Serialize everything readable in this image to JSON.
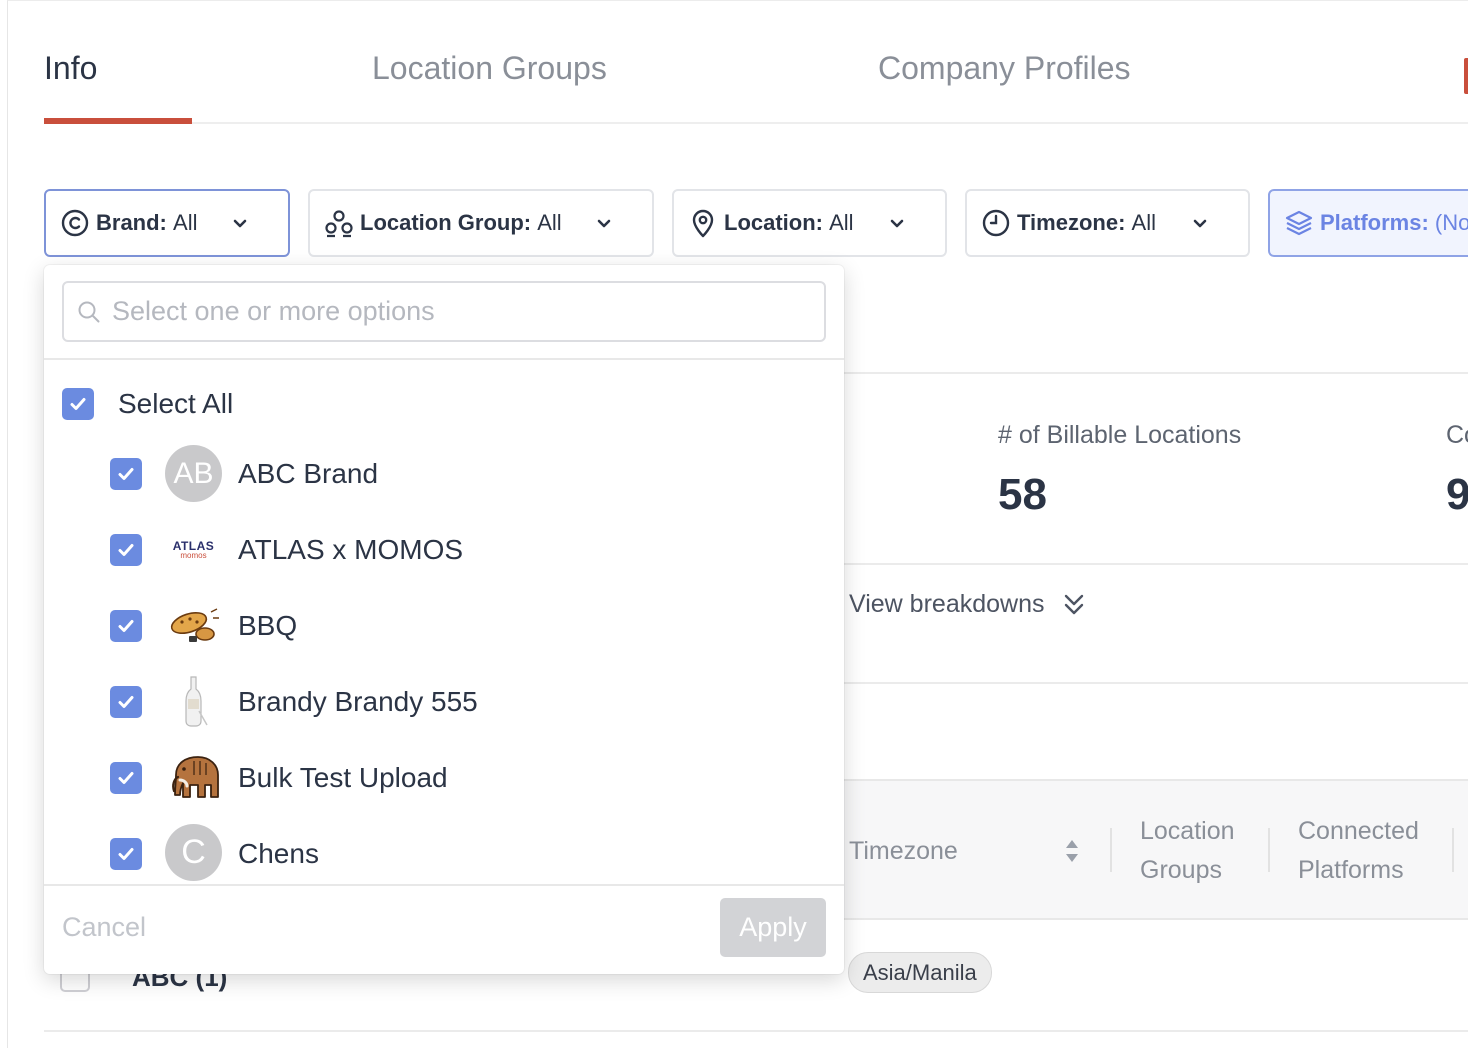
{
  "tabs": [
    {
      "label": "Info",
      "active": true
    },
    {
      "label": "Location Groups",
      "active": false
    },
    {
      "label": "Company Profiles",
      "active": false
    }
  ],
  "accent_color": "#c94f3c",
  "filters": {
    "brand": {
      "label": "Brand:",
      "value": "All",
      "icon": "copyright-icon"
    },
    "location_group": {
      "label": "Location Group:",
      "value": "All",
      "icon": "group-icon"
    },
    "location": {
      "label": "Location:",
      "value": "All",
      "icon": "map-pin-icon"
    },
    "timezone": {
      "label": "Timezone:",
      "value": "All",
      "icon": "clock-icon"
    },
    "platforms": {
      "label": "Platforms:",
      "value": "(No",
      "icon": "layers-icon"
    }
  },
  "stats": {
    "billable_label": "# of Billable Locations",
    "billable_value": "58",
    "next_label": "Co",
    "next_value": "9"
  },
  "view_breakdowns": "View breakdowns",
  "table": {
    "headers": {
      "timezone": "Timezone",
      "location_groups": [
        "Location",
        "Groups"
      ],
      "connected_platforms": [
        "Connected",
        "Platforms"
      ]
    },
    "rows": [
      {
        "name": "ABC (1)",
        "timezone": "Asia/Manila"
      }
    ]
  },
  "dropdown": {
    "search_placeholder": "Select one or more options",
    "select_all": "Select All",
    "options": [
      {
        "label": "ABC Brand",
        "logo": "initials",
        "initials": "AB",
        "checked": true
      },
      {
        "label": "ATLAS x MOMOS",
        "logo": "atlas-momos-logo",
        "logo_text": [
          "ATLAS",
          "momos"
        ],
        "checked": true
      },
      {
        "label": "BBQ",
        "logo": "bbq-logo",
        "checked": true
      },
      {
        "label": "Brandy Brandy 555",
        "logo": "bottle-logo",
        "checked": true
      },
      {
        "label": "Bulk Test Upload",
        "logo": "mammoth-logo",
        "checked": true
      },
      {
        "label": "Chens",
        "logo": "initials",
        "initials": "C",
        "checked": true
      }
    ],
    "cancel_label": "Cancel",
    "apply_label": "Apply"
  },
  "checkbox_color": "#6b8be0"
}
